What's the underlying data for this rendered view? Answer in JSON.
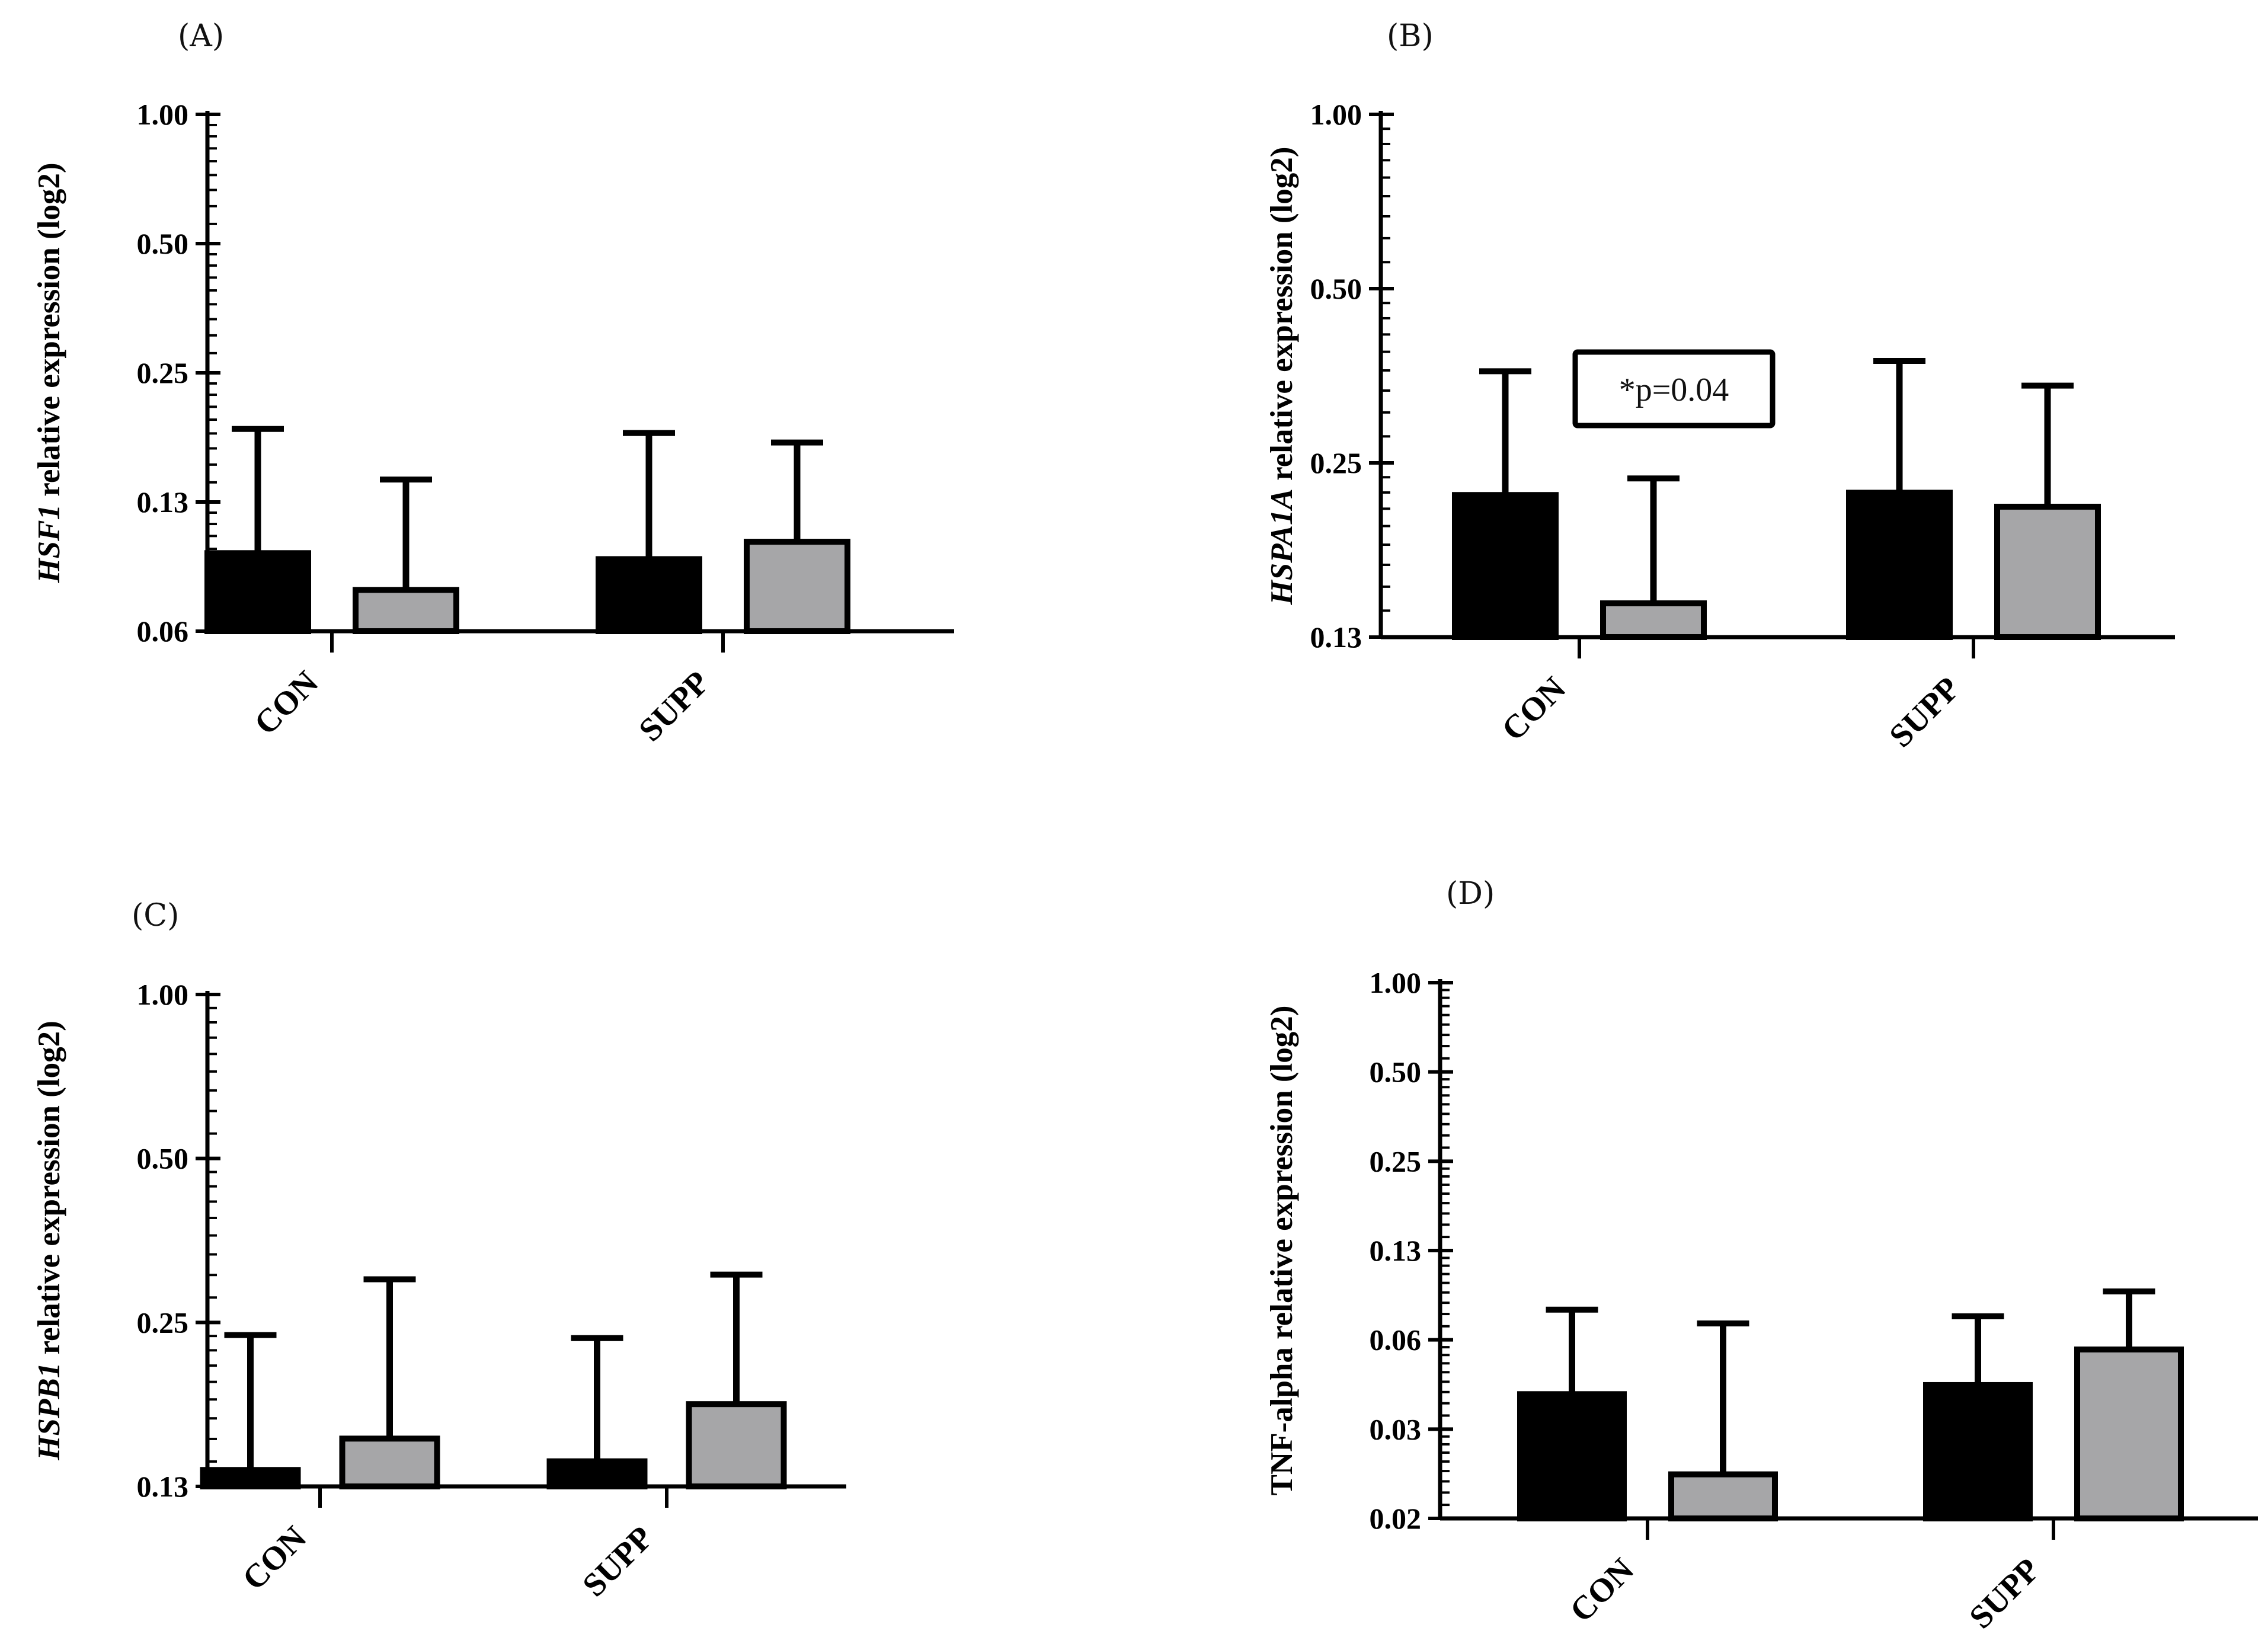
{
  "figure": {
    "background": "#ffffff"
  },
  "colors": {
    "series_1": "#000000",
    "series_2": "#a6a6a8",
    "stroke": "#000000"
  },
  "chart_data": [
    {
      "id": "A",
      "panel_label": "(A)",
      "type": "bar",
      "scale": "log2",
      "title": "",
      "ylabel_gene": "HSF1",
      "ylabel_rest": " relative expression (log2)",
      "ylabel_gene_italic": true,
      "xlabel": "",
      "categories": [
        "CON",
        "SUPP"
      ],
      "ylim": [
        0.0625,
        1.0
      ],
      "yticks": [
        0.0625,
        0.125,
        0.25,
        0.5,
        1.0
      ],
      "ytick_labels": [
        "0.06",
        "0.13",
        "0.25",
        "0.50",
        "1.00"
      ],
      "series": [
        {
          "name": "series 1",
          "color": "#000000",
          "values": [
            0.095,
            0.092
          ],
          "error_upper": [
            0.185,
            0.181
          ]
        },
        {
          "name": "series 2",
          "color": "#a6a6a8",
          "values": [
            0.078,
            0.101
          ],
          "error_upper": [
            0.141,
            0.172
          ]
        }
      ],
      "annotations": []
    },
    {
      "id": "B",
      "panel_label": "(B)",
      "type": "bar",
      "scale": "log2",
      "title": "",
      "ylabel_gene": "HSPA1A",
      "ylabel_rest": " relative expression (log2)",
      "ylabel_gene_italic": true,
      "xlabel": "",
      "categories": [
        "CON",
        "SUPP"
      ],
      "ylim": [
        0.125,
        1.0
      ],
      "yticks": [
        0.125,
        0.25,
        0.5,
        1.0
      ],
      "ytick_labels": [
        "0.13",
        "0.25",
        "0.50",
        "1.00"
      ],
      "series": [
        {
          "name": "series 1",
          "color": "#000000",
          "values": [
            0.22,
            0.222
          ],
          "error_upper": [
            0.36,
            0.375
          ]
        },
        {
          "name": "series 2",
          "color": "#a6a6a8",
          "values": [
            0.143,
            0.21
          ],
          "error_upper": [
            0.235,
            0.34
          ]
        }
      ],
      "annotations": [
        "*p=0.04"
      ]
    },
    {
      "id": "C",
      "panel_label": "(C)",
      "type": "bar",
      "scale": "log2",
      "title": "",
      "ylabel_gene": "HSPB1",
      "ylabel_rest": " relative expression (log2)",
      "ylabel_gene_italic": true,
      "xlabel": "",
      "categories": [
        "CON",
        "SUPP"
      ],
      "ylim": [
        0.125,
        1.0
      ],
      "yticks": [
        0.125,
        0.25,
        0.5,
        1.0
      ],
      "ytick_labels": [
        "0.13",
        "0.25",
        "0.50",
        "1.00"
      ],
      "series": [
        {
          "name": "series 1",
          "color": "#000000",
          "values": [
            0.134,
            0.139
          ],
          "error_upper": [
            0.237,
            0.234
          ]
        },
        {
          "name": "series 2",
          "color": "#a6a6a8",
          "values": [
            0.153,
            0.177
          ],
          "error_upper": [
            0.3,
            0.306
          ]
        }
      ],
      "annotations": []
    },
    {
      "id": "D",
      "panel_label": "(D)",
      "type": "bar",
      "scale": "log2",
      "title": "",
      "ylabel_gene": "TNF-alpha",
      "ylabel_rest": " relative expression (log2)",
      "ylabel_gene_italic": false,
      "xlabel": "",
      "categories": [
        "CON",
        "SUPP"
      ],
      "ylim": [
        0.015625,
        1.0
      ],
      "yticks": [
        0.015625,
        0.03125,
        0.0625,
        0.125,
        0.25,
        0.5,
        1.0
      ],
      "ytick_labels": [
        "0.02",
        "0.03",
        "0.06",
        "0.13",
        "0.25",
        "0.50",
        "1.00"
      ],
      "series": [
        {
          "name": "series 1",
          "color": "#000000",
          "values": [
            0.041,
            0.044
          ],
          "error_upper": [
            0.079,
            0.075
          ]
        },
        {
          "name": "series 2",
          "color": "#a6a6a8",
          "values": [
            0.022,
            0.058
          ],
          "error_upper": [
            0.071,
            0.091
          ]
        }
      ],
      "annotations": []
    }
  ]
}
